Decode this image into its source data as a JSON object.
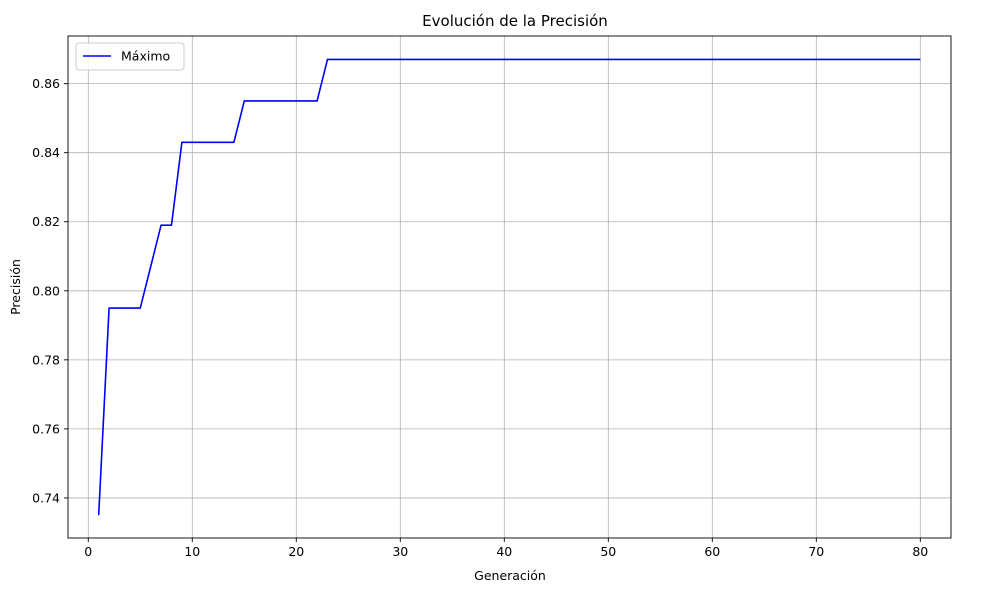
{
  "chart_data": {
    "type": "line",
    "title": "Evolución de la Precisión",
    "xlabel": "Generación",
    "ylabel": "Precisión",
    "xlim": [
      -1.95,
      82.95
    ],
    "ylim": [
      0.7284,
      0.8738
    ],
    "xticks": [
      0,
      10,
      20,
      30,
      40,
      50,
      60,
      70,
      80
    ],
    "yticks": [
      0.74,
      0.76,
      0.78,
      0.8,
      0.82,
      0.84,
      0.86
    ],
    "ytick_labels": [
      "0.74",
      "0.76",
      "0.78",
      "0.80",
      "0.82",
      "0.84",
      "0.86"
    ],
    "grid": true,
    "legend_position": "top-left",
    "series": [
      {
        "name": "Máximo",
        "color": "#0000ff",
        "x": [
          1,
          2,
          3,
          4,
          5,
          6,
          7,
          8,
          9,
          10,
          11,
          12,
          13,
          14,
          15,
          16,
          17,
          18,
          19,
          20,
          21,
          22,
          23,
          24,
          25,
          26,
          27,
          28,
          29,
          30,
          31,
          32,
          33,
          34,
          35,
          36,
          37,
          38,
          39,
          40,
          41,
          42,
          43,
          44,
          45,
          46,
          47,
          48,
          49,
          50,
          51,
          52,
          53,
          54,
          55,
          56,
          57,
          58,
          59,
          60,
          61,
          62,
          63,
          64,
          65,
          66,
          67,
          68,
          69,
          70,
          71,
          72,
          73,
          74,
          75,
          76,
          77,
          78,
          79,
          80
        ],
        "y": [
          0.735,
          0.795,
          0.795,
          0.795,
          0.795,
          0.807,
          0.819,
          0.819,
          0.843,
          0.843,
          0.843,
          0.843,
          0.843,
          0.843,
          0.855,
          0.855,
          0.855,
          0.855,
          0.855,
          0.855,
          0.855,
          0.855,
          0.867,
          0.867,
          0.867,
          0.867,
          0.867,
          0.867,
          0.867,
          0.867,
          0.867,
          0.867,
          0.867,
          0.867,
          0.867,
          0.867,
          0.867,
          0.867,
          0.867,
          0.867,
          0.867,
          0.867,
          0.867,
          0.867,
          0.867,
          0.867,
          0.867,
          0.867,
          0.867,
          0.867,
          0.867,
          0.867,
          0.867,
          0.867,
          0.867,
          0.867,
          0.867,
          0.867,
          0.867,
          0.867,
          0.867,
          0.867,
          0.867,
          0.867,
          0.867,
          0.867,
          0.867,
          0.867,
          0.867,
          0.867,
          0.867,
          0.867,
          0.867,
          0.867,
          0.867,
          0.867,
          0.867,
          0.867,
          0.867,
          0.867
        ]
      }
    ]
  }
}
